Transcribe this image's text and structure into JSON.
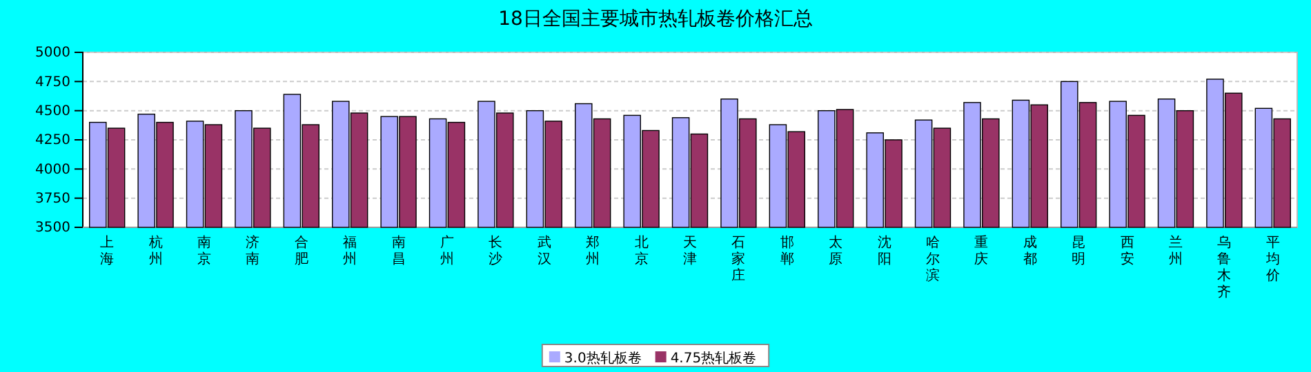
{
  "chart_data": {
    "type": "bar",
    "title": "18日全国主要城市热轧板卷价格汇总",
    "categories": [
      "上海",
      "杭州",
      "南京",
      "济南",
      "合肥",
      "福州",
      "南昌",
      "广州",
      "长沙",
      "武汉",
      "郑州",
      "北京",
      "天津",
      "石家庄",
      "邯郸",
      "太原",
      "沈阳",
      "哈尔滨",
      "重庆",
      "成都",
      "昆明",
      "西安",
      "兰州",
      "乌鲁木齐",
      "平均价"
    ],
    "series": [
      {
        "name": "3.0热轧板卷",
        "color": "#aaaaff",
        "values": [
          4400,
          4470,
          4410,
          4500,
          4640,
          4580,
          4450,
          4430,
          4580,
          4500,
          4560,
          4460,
          4440,
          4600,
          4380,
          4500,
          4310,
          4420,
          4570,
          4590,
          4750,
          4580,
          4600,
          4770,
          4520
        ]
      },
      {
        "name": "4.75热轧板卷",
        "color": "#993366",
        "values": [
          4350,
          4400,
          4380,
          4350,
          4380,
          4480,
          4450,
          4400,
          4480,
          4410,
          4430,
          4330,
          4300,
          4430,
          4320,
          4510,
          4250,
          4350,
          4430,
          4550,
          4570,
          4460,
          4500,
          4650,
          4430
        ]
      }
    ],
    "ylim": [
      3500,
      5000
    ],
    "yticks": [
      3500,
      3750,
      4000,
      4250,
      4500,
      4750,
      5000
    ],
    "grid": "y",
    "legend": "bottom"
  }
}
